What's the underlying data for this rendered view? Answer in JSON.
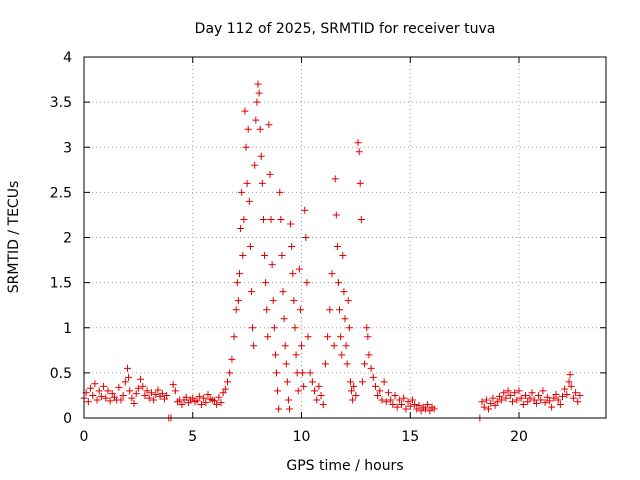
{
  "chart_data": {
    "type": "scatter",
    "title": "Day 112 of 2025, SRMTID for receiver tuva",
    "xlabel": "GPS time / hours",
    "ylabel": "SRMTID / TECUs",
    "xlim": [
      0,
      24
    ],
    "ylim": [
      0,
      4
    ],
    "xticks": [
      0,
      5,
      10,
      15,
      20
    ],
    "yticks": [
      0,
      0.5,
      1,
      1.5,
      2,
      2.5,
      3,
      3.5,
      4
    ],
    "xtick_labels": [
      "0",
      "5",
      "10",
      "15",
      "20"
    ],
    "ytick_labels": [
      "0",
      "0.5",
      "1",
      "1.5",
      "2",
      "2.5",
      "3",
      "3.5",
      "4"
    ],
    "grid": true,
    "marker": "+",
    "color": "#e00000",
    "series": [
      {
        "name": "SRMTID",
        "points": [
          [
            0.0,
            0.22
          ],
          [
            0.1,
            0.28
          ],
          [
            0.2,
            0.18
          ],
          [
            0.3,
            0.33
          ],
          [
            0.4,
            0.25
          ],
          [
            0.5,
            0.38
          ],
          [
            0.6,
            0.2
          ],
          [
            0.7,
            0.3
          ],
          [
            0.8,
            0.24
          ],
          [
            0.9,
            0.35
          ],
          [
            1.0,
            0.22
          ],
          [
            1.1,
            0.3
          ],
          [
            1.2,
            0.19
          ],
          [
            1.3,
            0.27
          ],
          [
            1.4,
            0.23
          ],
          [
            1.5,
            0.2
          ],
          [
            1.6,
            0.34
          ],
          [
            1.7,
            0.2
          ],
          [
            1.8,
            0.25
          ],
          [
            1.9,
            0.4
          ],
          [
            2.0,
            0.55
          ],
          [
            2.05,
            0.45
          ],
          [
            2.1,
            0.3
          ],
          [
            2.2,
            0.22
          ],
          [
            2.3,
            0.16
          ],
          [
            2.4,
            0.27
          ],
          [
            2.5,
            0.33
          ],
          [
            2.6,
            0.43
          ],
          [
            2.7,
            0.35
          ],
          [
            2.8,
            0.25
          ],
          [
            2.9,
            0.3
          ],
          [
            3.0,
            0.22
          ],
          [
            3.1,
            0.28
          ],
          [
            3.2,
            0.2
          ],
          [
            3.3,
            0.26
          ],
          [
            3.4,
            0.31
          ],
          [
            3.5,
            0.24
          ],
          [
            3.6,
            0.27
          ],
          [
            3.7,
            0.21
          ],
          [
            3.8,
            0.25
          ],
          [
            3.9,
            0.0
          ],
          [
            4.0,
            0.0
          ],
          [
            4.1,
            0.37
          ],
          [
            4.2,
            0.3
          ],
          [
            4.3,
            0.18
          ],
          [
            4.4,
            0.2
          ],
          [
            4.5,
            0.15
          ],
          [
            4.6,
            0.2
          ],
          [
            4.7,
            0.23
          ],
          [
            4.8,
            0.17
          ],
          [
            4.9,
            0.2
          ],
          [
            5.0,
            0.22
          ],
          [
            5.1,
            0.18
          ],
          [
            5.2,
            0.19
          ],
          [
            5.3,
            0.24
          ],
          [
            5.4,
            0.15
          ],
          [
            5.5,
            0.22
          ],
          [
            5.6,
            0.17
          ],
          [
            5.7,
            0.26
          ],
          [
            5.8,
            0.21
          ],
          [
            5.9,
            0.2
          ],
          [
            6.0,
            0.19
          ],
          [
            6.1,
            0.15
          ],
          [
            6.2,
            0.23
          ],
          [
            6.3,
            0.17
          ],
          [
            6.4,
            0.28
          ],
          [
            6.5,
            0.32
          ],
          [
            6.6,
            0.4
          ],
          [
            6.7,
            0.5
          ],
          [
            6.8,
            0.65
          ],
          [
            6.9,
            0.9
          ],
          [
            7.0,
            1.2
          ],
          [
            7.05,
            1.5
          ],
          [
            7.1,
            1.3
          ],
          [
            7.15,
            1.6
          ],
          [
            7.2,
            2.1
          ],
          [
            7.25,
            2.5
          ],
          [
            7.3,
            1.8
          ],
          [
            7.35,
            2.2
          ],
          [
            7.4,
            3.4
          ],
          [
            7.45,
            3.0
          ],
          [
            7.5,
            2.6
          ],
          [
            7.55,
            3.2
          ],
          [
            7.6,
            2.4
          ],
          [
            7.65,
            1.9
          ],
          [
            7.7,
            1.4
          ],
          [
            7.75,
            1.0
          ],
          [
            7.8,
            0.8
          ],
          [
            7.85,
            2.8
          ],
          [
            7.9,
            3.3
          ],
          [
            7.95,
            3.5
          ],
          [
            8.0,
            3.7
          ],
          [
            8.05,
            3.6
          ],
          [
            8.1,
            3.2
          ],
          [
            8.15,
            2.9
          ],
          [
            8.2,
            2.6
          ],
          [
            8.25,
            2.2
          ],
          [
            8.3,
            1.8
          ],
          [
            8.35,
            1.5
          ],
          [
            8.4,
            1.2
          ],
          [
            8.45,
            0.9
          ],
          [
            8.5,
            3.25
          ],
          [
            8.55,
            2.7
          ],
          [
            8.6,
            2.2
          ],
          [
            8.65,
            1.7
          ],
          [
            8.7,
            1.3
          ],
          [
            8.75,
            1.0
          ],
          [
            8.8,
            0.7
          ],
          [
            8.85,
            0.5
          ],
          [
            8.9,
            0.3
          ],
          [
            8.95,
            0.1
          ],
          [
            9.0,
            2.5
          ],
          [
            9.05,
            2.2
          ],
          [
            9.1,
            1.8
          ],
          [
            9.15,
            1.4
          ],
          [
            9.2,
            1.1
          ],
          [
            9.25,
            0.8
          ],
          [
            9.3,
            0.6
          ],
          [
            9.35,
            0.4
          ],
          [
            9.4,
            0.2
          ],
          [
            9.45,
            0.1
          ],
          [
            9.5,
            2.15
          ],
          [
            9.55,
            1.9
          ],
          [
            9.6,
            1.6
          ],
          [
            9.65,
            1.3
          ],
          [
            9.7,
            1.0
          ],
          [
            9.75,
            0.7
          ],
          [
            9.8,
            0.5
          ],
          [
            9.85,
            0.3
          ],
          [
            9.9,
            1.65
          ],
          [
            9.95,
            1.2
          ],
          [
            10.0,
            0.8
          ],
          [
            10.05,
            0.5
          ],
          [
            10.1,
            0.35
          ],
          [
            10.15,
            2.3
          ],
          [
            10.2,
            2.0
          ],
          [
            10.25,
            1.5
          ],
          [
            10.3,
            0.9
          ],
          [
            10.4,
            0.5
          ],
          [
            10.5,
            0.4
          ],
          [
            10.6,
            0.3
          ],
          [
            10.7,
            0.2
          ],
          [
            10.8,
            0.35
          ],
          [
            10.9,
            0.25
          ],
          [
            11.0,
            0.15
          ],
          [
            11.1,
            0.6
          ],
          [
            11.2,
            0.9
          ],
          [
            11.3,
            1.2
          ],
          [
            11.4,
            1.6
          ],
          [
            11.5,
            0.8
          ],
          [
            11.55,
            2.65
          ],
          [
            11.6,
            2.25
          ],
          [
            11.65,
            1.9
          ],
          [
            11.7,
            1.5
          ],
          [
            11.75,
            1.2
          ],
          [
            11.8,
            0.9
          ],
          [
            11.85,
            0.7
          ],
          [
            11.9,
            1.8
          ],
          [
            11.95,
            1.4
          ],
          [
            12.0,
            1.1
          ],
          [
            12.05,
            0.8
          ],
          [
            12.1,
            0.6
          ],
          [
            12.15,
            1.3
          ],
          [
            12.2,
            1.0
          ],
          [
            12.25,
            0.4
          ],
          [
            12.3,
            0.3
          ],
          [
            12.35,
            0.2
          ],
          [
            12.4,
            0.35
          ],
          [
            12.5,
            0.25
          ],
          [
            12.6,
            3.05
          ],
          [
            12.65,
            2.95
          ],
          [
            12.7,
            2.6
          ],
          [
            12.75,
            2.2
          ],
          [
            12.8,
            0.4
          ],
          [
            12.9,
            0.6
          ],
          [
            13.0,
            1.0
          ],
          [
            13.05,
            0.9
          ],
          [
            13.1,
            0.7
          ],
          [
            13.2,
            0.55
          ],
          [
            13.3,
            0.45
          ],
          [
            13.4,
            0.35
          ],
          [
            13.5,
            0.25
          ],
          [
            13.6,
            0.3
          ],
          [
            13.7,
            0.2
          ],
          [
            13.8,
            0.4
          ],
          [
            13.9,
            0.18
          ],
          [
            14.0,
            0.28
          ],
          [
            14.1,
            0.2
          ],
          [
            14.2,
            0.15
          ],
          [
            14.3,
            0.25
          ],
          [
            14.4,
            0.12
          ],
          [
            14.5,
            0.2
          ],
          [
            14.6,
            0.15
          ],
          [
            14.7,
            0.22
          ],
          [
            14.8,
            0.1
          ],
          [
            14.9,
            0.18
          ],
          [
            15.0,
            0.13
          ],
          [
            15.1,
            0.2
          ],
          [
            15.2,
            0.15
          ],
          [
            15.3,
            0.1
          ],
          [
            15.4,
            0.14
          ],
          [
            15.5,
            0.08
          ],
          [
            15.6,
            0.12
          ],
          [
            15.7,
            0.1
          ],
          [
            15.8,
            0.15
          ],
          [
            15.9,
            0.08
          ],
          [
            16.0,
            0.12
          ],
          [
            16.1,
            0.1
          ],
          [
            18.2,
            0.0
          ],
          [
            18.3,
            0.18
          ],
          [
            18.4,
            0.12
          ],
          [
            18.5,
            0.2
          ],
          [
            18.6,
            0.1
          ],
          [
            18.7,
            0.16
          ],
          [
            18.8,
            0.22
          ],
          [
            18.9,
            0.14
          ],
          [
            19.0,
            0.18
          ],
          [
            19.1,
            0.24
          ],
          [
            19.2,
            0.2
          ],
          [
            19.3,
            0.28
          ],
          [
            19.4,
            0.22
          ],
          [
            19.5,
            0.3
          ],
          [
            19.6,
            0.25
          ],
          [
            19.7,
            0.18
          ],
          [
            19.8,
            0.28
          ],
          [
            19.9,
            0.2
          ],
          [
            20.0,
            0.3
          ],
          [
            20.1,
            0.22
          ],
          [
            20.2,
            0.15
          ],
          [
            20.3,
            0.25
          ],
          [
            20.4,
            0.18
          ],
          [
            20.5,
            0.22
          ],
          [
            20.6,
            0.28
          ],
          [
            20.7,
            0.2
          ],
          [
            20.8,
            0.16
          ],
          [
            20.9,
            0.25
          ],
          [
            21.0,
            0.2
          ],
          [
            21.1,
            0.3
          ],
          [
            21.2,
            0.17
          ],
          [
            21.3,
            0.23
          ],
          [
            21.4,
            0.19
          ],
          [
            21.5,
            0.12
          ],
          [
            21.6,
            0.22
          ],
          [
            21.7,
            0.26
          ],
          [
            21.8,
            0.2
          ],
          [
            21.9,
            0.15
          ],
          [
            22.0,
            0.24
          ],
          [
            22.1,
            0.32
          ],
          [
            22.2,
            0.26
          ],
          [
            22.3,
            0.4
          ],
          [
            22.35,
            0.48
          ],
          [
            22.4,
            0.35
          ],
          [
            22.5,
            0.22
          ],
          [
            22.6,
            0.28
          ],
          [
            22.7,
            0.18
          ],
          [
            22.8,
            0.25
          ]
        ]
      }
    ]
  }
}
